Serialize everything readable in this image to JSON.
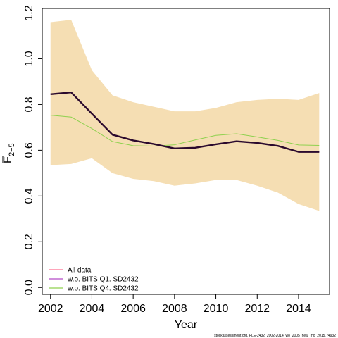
{
  "chart_data": {
    "type": "line",
    "xlabel": "Year",
    "ylabel_main": "F",
    "ylabel_sub": "2−5",
    "xlim": [
      2001.6,
      2015.5
    ],
    "ylim": [
      -0.03,
      1.22
    ],
    "x_ticks": [
      2002,
      2004,
      2006,
      2008,
      2010,
      2012,
      2014
    ],
    "y_ticks": [
      0.0,
      0.2,
      0.4,
      0.6,
      0.8,
      1.0,
      1.2
    ],
    "x_tick_labels": [
      "2002",
      "2004",
      "2006",
      "2008",
      "2010",
      "2012",
      "2014"
    ],
    "y_tick_labels": [
      "0.0",
      "0.2",
      "0.4",
      "0.6",
      "0.8",
      "1.0",
      "1.2"
    ],
    "x": [
      2002,
      2003,
      2004,
      2005,
      2006,
      2007,
      2008,
      2009,
      2010,
      2011,
      2012,
      2013,
      2014,
      2015
    ],
    "band": {
      "upper": [
        1.16,
        1.17,
        0.95,
        0.84,
        0.81,
        0.79,
        0.77,
        0.77,
        0.785,
        0.81,
        0.82,
        0.825,
        0.82,
        0.85
      ],
      "lower": [
        0.535,
        0.54,
        0.565,
        0.5,
        0.475,
        0.465,
        0.445,
        0.455,
        0.47,
        0.47,
        0.445,
        0.415,
        0.365,
        0.335
      ],
      "color": "#F5DEB3"
    },
    "series": [
      {
        "name": "All data",
        "values": [
          0.845,
          0.853,
          0.76,
          0.668,
          0.643,
          0.627,
          0.608,
          0.611,
          0.626,
          0.639,
          0.632,
          0.619,
          0.593,
          0.593
        ],
        "color": "#FF6F91"
      },
      {
        "name": "w.o. BITS Q1. SD2432",
        "values": [
          0.845,
          0.853,
          0.76,
          0.668,
          0.643,
          0.627,
          0.608,
          0.611,
          0.626,
          0.639,
          0.632,
          0.619,
          0.593,
          0.593
        ],
        "color": "#B54AC8"
      },
      {
        "name": "w.o. BITS Q4. SD2432",
        "values": [
          0.753,
          0.745,
          0.695,
          0.638,
          0.62,
          0.618,
          0.624,
          0.645,
          0.665,
          0.672,
          0.658,
          0.643,
          0.623,
          0.621
        ],
        "color": "#8FD14F"
      }
    ],
    "main_line_color": "#2B0A2E",
    "legend_position": "bottom-left",
    "footer": "stockassessment.org, PLE-2432_2002-2014_wo_2005_new_mo_2015, r4932"
  }
}
